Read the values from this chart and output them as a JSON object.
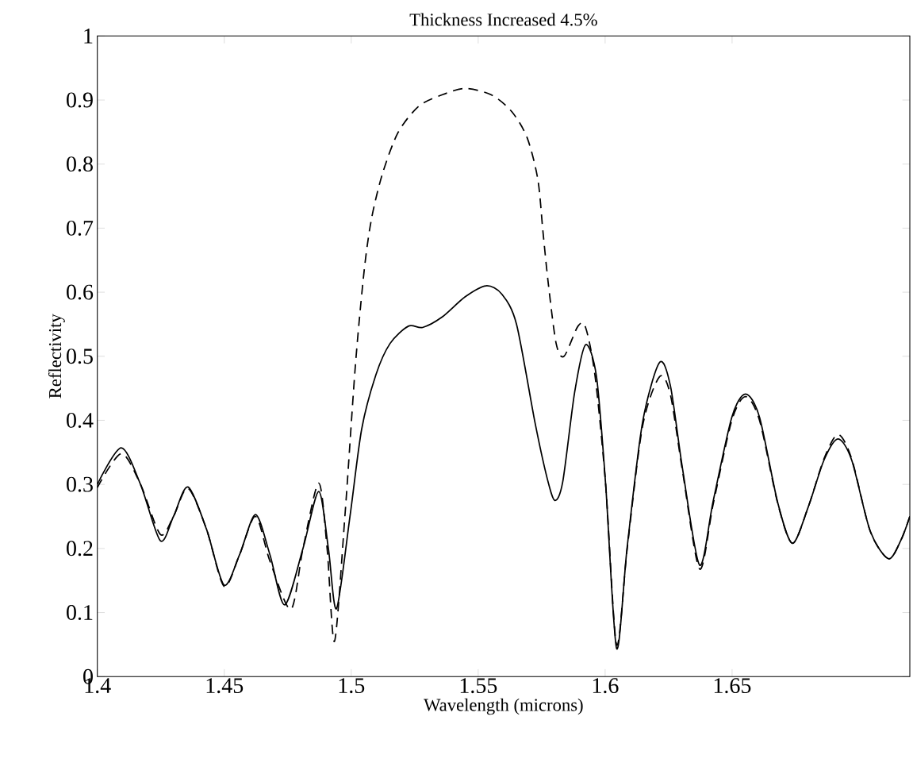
{
  "chart_data": {
    "type": "line",
    "title": "Thickness Increased 4.5%",
    "xlabel": "Wavelength (microns)",
    "ylabel": "Reflectivity",
    "xlim": [
      1.4,
      1.72
    ],
    "ylim": [
      0,
      1
    ],
    "xticks": [
      1.4,
      1.45,
      1.5,
      1.55,
      1.6,
      1.65
    ],
    "yticks": [
      0,
      0.1,
      0.2,
      0.3,
      0.4,
      0.5,
      0.6,
      0.7,
      0.8,
      0.9,
      1
    ],
    "grid": false,
    "marker": "none",
    "series": [
      {
        "color": "#000000",
        "line_style": "solid",
        "x": [
          1.4,
          1.4094,
          1.417,
          1.4248,
          1.43,
          1.4357,
          1.443,
          1.4499,
          1.456,
          1.4623,
          1.468,
          1.4738,
          1.481,
          1.4872,
          1.491,
          1.4942,
          1.4995,
          1.5041,
          1.5097,
          1.5153,
          1.5225,
          1.5281,
          1.5357,
          1.5449,
          1.5531,
          1.5593,
          1.5651,
          1.5724,
          1.5772,
          1.5802,
          1.5833,
          1.588,
          1.5923,
          1.5966,
          1.6002,
          1.6045,
          1.6087,
          1.6147,
          1.6214,
          1.6257,
          1.6305,
          1.6372,
          1.6426,
          1.6499,
          1.6553,
          1.6608,
          1.668,
          1.6738,
          1.6801,
          1.6862,
          1.6917,
          1.6971,
          1.7044,
          1.7116,
          1.7165,
          1.72
        ],
        "values": [
          0.3,
          0.357,
          0.3,
          0.212,
          0.25,
          0.296,
          0.23,
          0.143,
          0.19,
          0.253,
          0.19,
          0.112,
          0.2,
          0.289,
          0.2,
          0.106,
          0.25,
          0.386,
          0.471,
          0.52,
          0.547,
          0.545,
          0.561,
          0.593,
          0.61,
          0.597,
          0.55,
          0.396,
          0.309,
          0.275,
          0.304,
          0.444,
          0.518,
          0.468,
          0.3,
          0.044,
          0.203,
          0.396,
          0.49,
          0.454,
          0.324,
          0.174,
          0.275,
          0.405,
          0.441,
          0.405,
          0.271,
          0.208,
          0.266,
          0.338,
          0.371,
          0.338,
          0.227,
          0.184,
          0.213,
          0.25
        ]
      },
      {
        "color": "#000000",
        "line_style": "dashed",
        "x": [
          1.4,
          1.4094,
          1.417,
          1.4248,
          1.43,
          1.4357,
          1.443,
          1.4499,
          1.456,
          1.4623,
          1.468,
          1.4762,
          1.481,
          1.4872,
          1.4905,
          1.4934,
          1.4975,
          1.5016,
          1.5051,
          1.508,
          1.5123,
          1.5184,
          1.5265,
          1.5357,
          1.5449,
          1.5552,
          1.5632,
          1.5693,
          1.5735,
          1.5755,
          1.5776,
          1.5807,
          1.5838,
          1.5893,
          1.5923,
          1.596,
          1.6002,
          1.6045,
          1.6087,
          1.6147,
          1.6214,
          1.6257,
          1.6305,
          1.6372,
          1.6426,
          1.6499,
          1.6553,
          1.6608,
          1.668,
          1.6738,
          1.6801,
          1.6862,
          1.6917,
          1.6971,
          1.7044,
          1.7116,
          1.7165,
          1.72
        ],
        "values": [
          0.295,
          0.348,
          0.3,
          0.222,
          0.25,
          0.294,
          0.23,
          0.141,
          0.19,
          0.25,
          0.18,
          0.105,
          0.2,
          0.302,
          0.2,
          0.055,
          0.25,
          0.484,
          0.634,
          0.715,
          0.785,
          0.849,
          0.89,
          0.908,
          0.918,
          0.908,
          0.882,
          0.841,
          0.776,
          0.695,
          0.614,
          0.52,
          0.5,
          0.547,
          0.545,
          0.47,
          0.3,
          0.05,
          0.2,
          0.39,
          0.468,
          0.44,
          0.32,
          0.168,
          0.27,
          0.4,
          0.437,
          0.4,
          0.27,
          0.208,
          0.266,
          0.34,
          0.378,
          0.34,
          0.227,
          0.184,
          0.213,
          0.25
        ]
      }
    ]
  }
}
